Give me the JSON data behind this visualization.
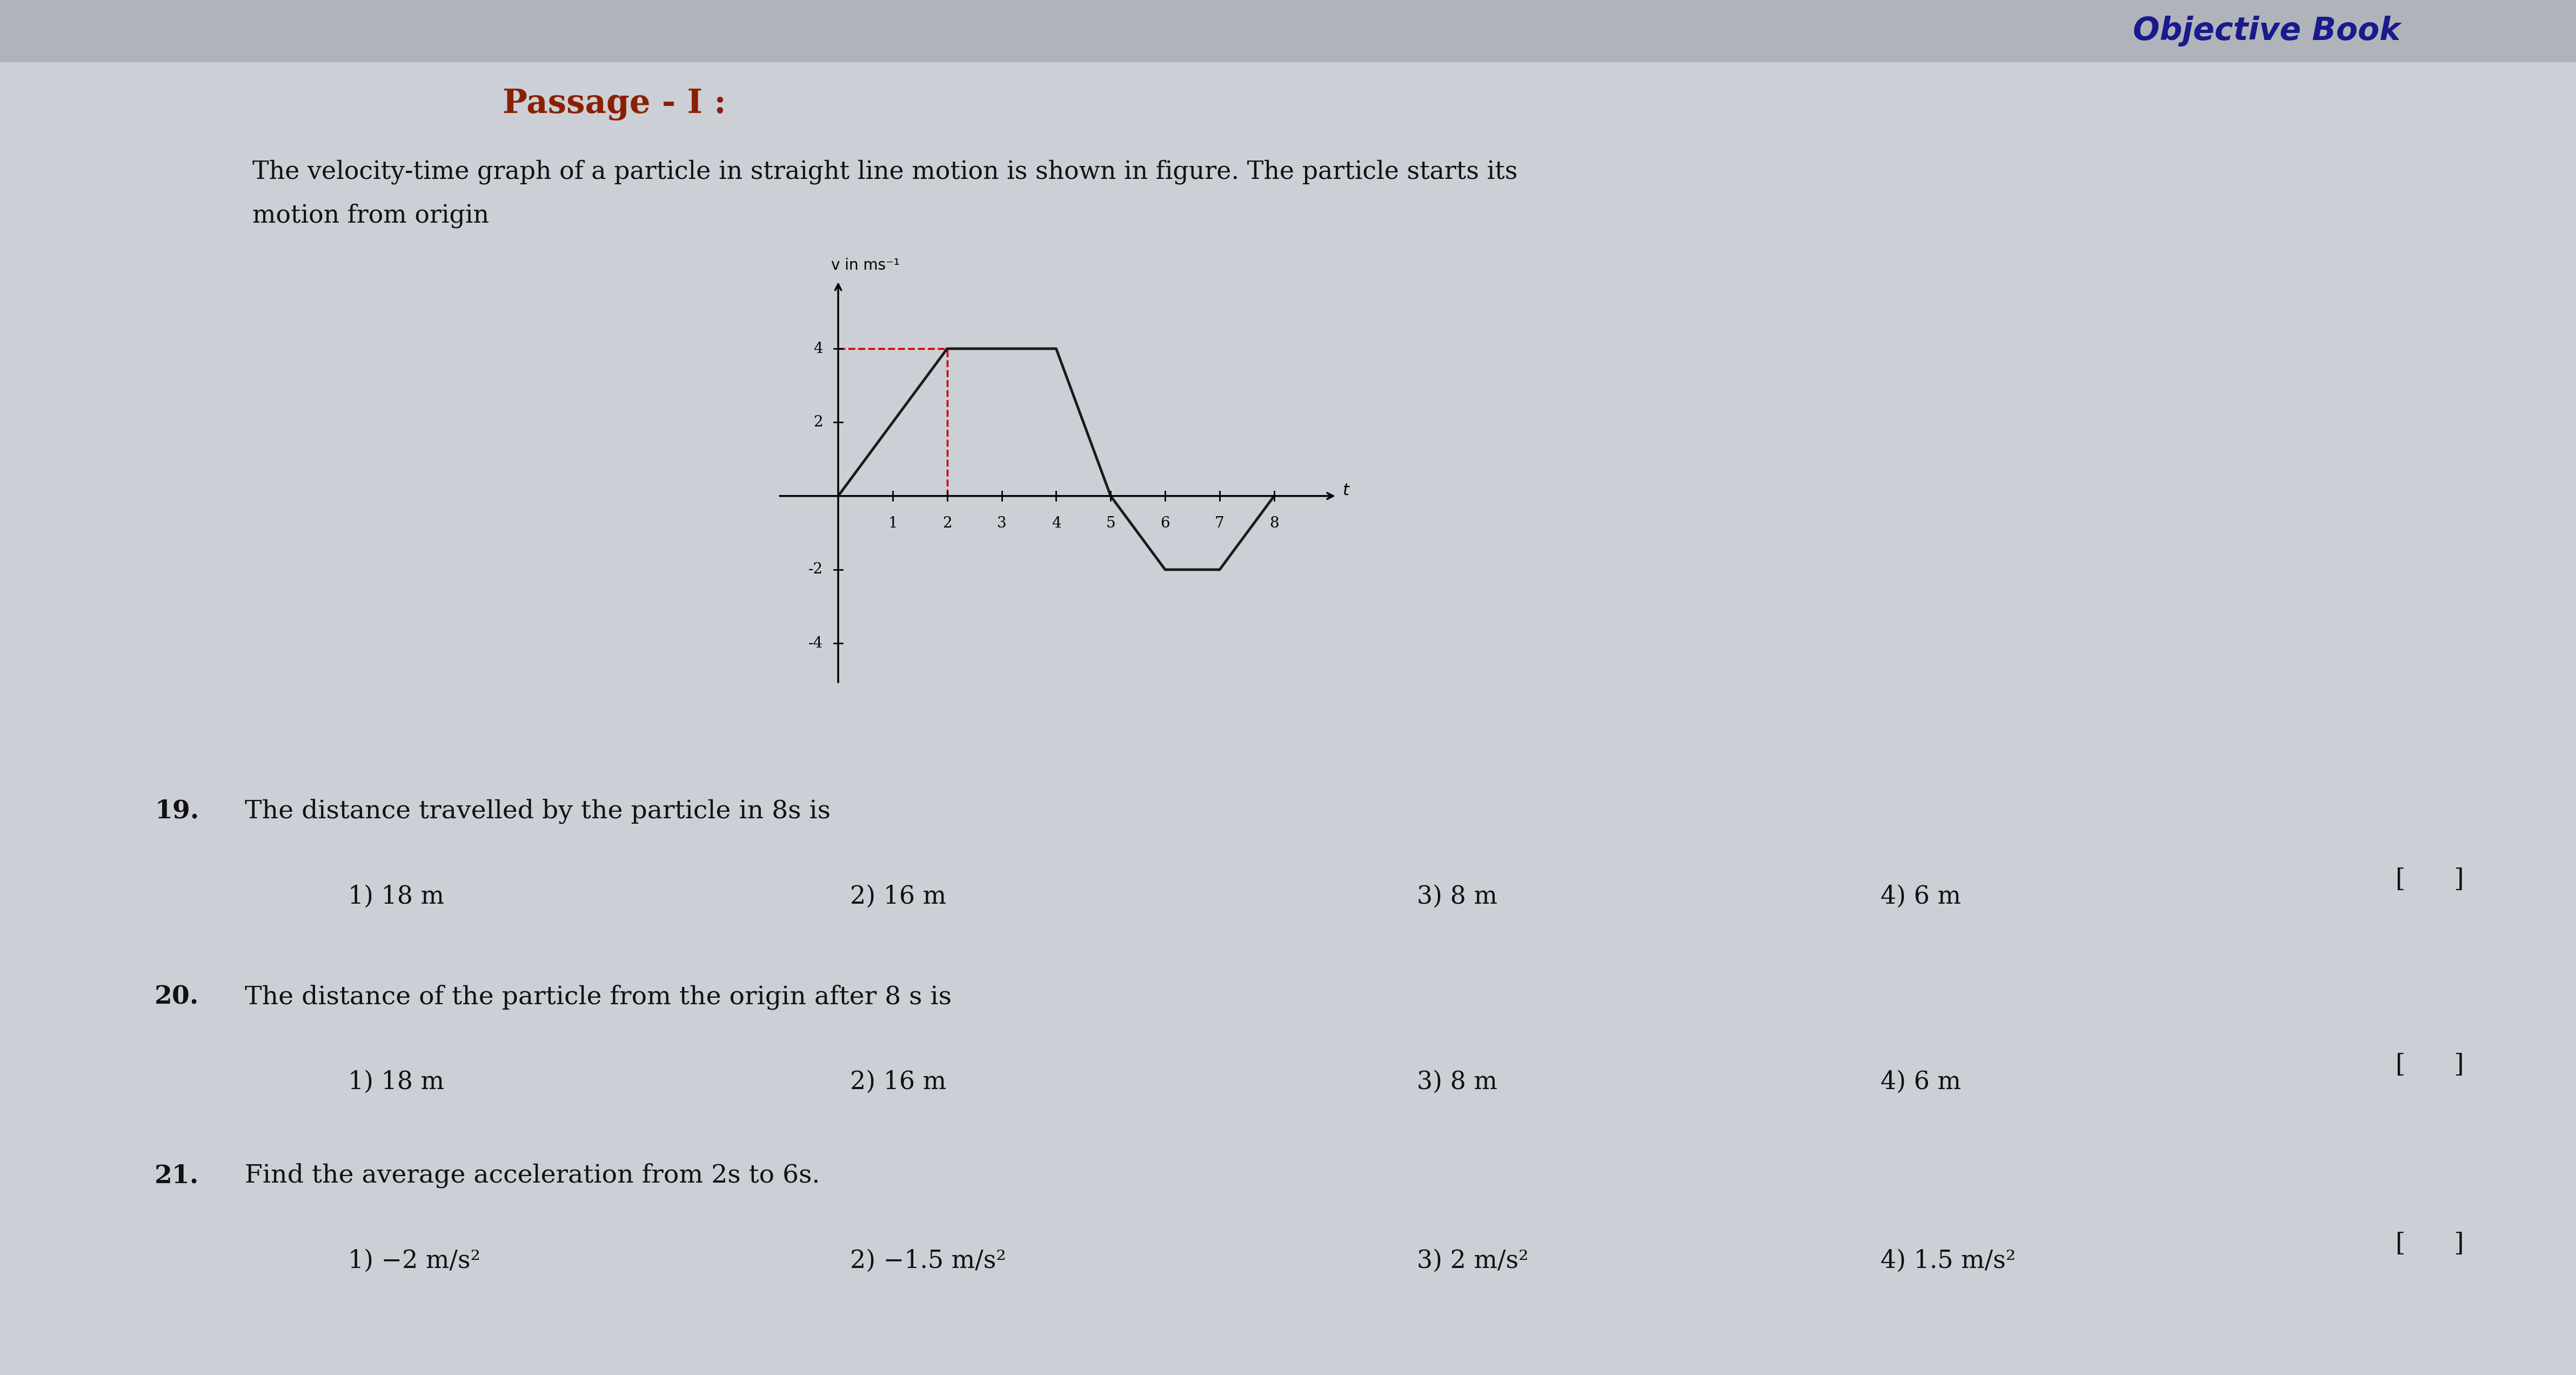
{
  "background_color": "#cccfd5",
  "passage_text": "Passage - I :",
  "passage_color": "#8B2000",
  "body_text_line1": "The velocity-time graph of a particle in straight line motion is shown in figure. The particle starts its",
  "body_text_line2": "motion from origin",
  "graph_xlabel": "t",
  "graph_ylabel": "v in ms⁻¹",
  "graph_v_points": [
    0,
    4,
    4,
    0,
    -2,
    -2,
    0
  ],
  "graph_t_points": [
    0,
    2,
    4,
    5,
    6,
    7,
    8
  ],
  "dashed_t1": 2,
  "dashed_v1": 4,
  "dashed_color": "#cc0000",
  "graph_line_color": "#1a1a1a",
  "graph_xlim": [
    -1.2,
    9.2
  ],
  "graph_ylim": [
    -5.2,
    6.0
  ],
  "graph_xticks": [
    1,
    2,
    3,
    4,
    5,
    6,
    7,
    8
  ],
  "graph_yticks": [
    -4,
    -2,
    2,
    4
  ],
  "q19_text": "19.   The distance travelled by the particle in 8s is",
  "q19_opt1": "1) 18 m",
  "q19_opt2": "2) 16 m",
  "q19_opt3": "3) 8 m",
  "q19_opt4": "4) 6 m",
  "q20_text": "20.   The distance of the particle from the origin after 8 s is",
  "q20_opt1": "1) 18 m",
  "q20_opt2": "2) 16 m",
  "q20_opt3": "3) 8 m",
  "q20_opt4": "4) 6 m",
  "q21_text": "21.   Find the average acceleration from 2s to 6s.",
  "q21_opt1": "1) −2 m/s²",
  "q21_opt2": "2) −1.5 m/s²",
  "q21_opt3": "3) 2 m/s²",
  "q21_opt4": "4) 1.5 m/s²",
  "objbook_text": "Objective Book",
  "objbook_color": "#1a1a8c",
  "header_bar_color": "#b0b4ba"
}
